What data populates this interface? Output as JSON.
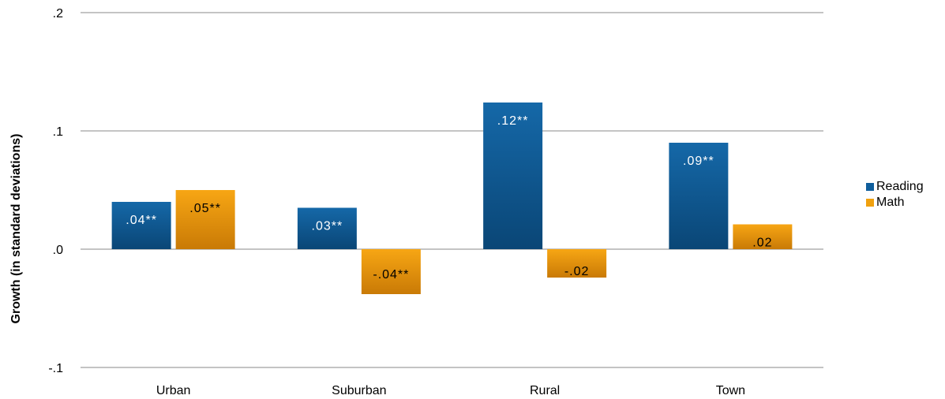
{
  "chart_data": {
    "type": "bar",
    "ylabel": "Growth (in standard deviations)",
    "xlabel": "",
    "categories": [
      "Urban",
      "Suburban",
      "Rural",
      "Town"
    ],
    "yticks": [
      {
        "value": -0.1,
        "label": "-.1"
      },
      {
        "value": 0.0,
        "label": ".0"
      },
      {
        "value": 0.1,
        "label": ".1"
      },
      {
        "value": 0.2,
        "label": ".2"
      }
    ],
    "ylim": [
      -0.1,
      0.2
    ],
    "grid": true,
    "legend_position": "right",
    "series": [
      {
        "name": "Reading",
        "color": "#0f5e9c",
        "values": [
          0.04,
          0.035,
          0.124,
          0.09
        ],
        "labels": [
          ".04**",
          ".03**",
          ".12**",
          ".09**"
        ]
      },
      {
        "name": "Math",
        "color": "#f0a10f",
        "values": [
          0.05,
          -0.038,
          -0.024,
          0.021
        ],
        "labels": [
          ".05**",
          "-.04**",
          "-.02",
          ".02"
        ]
      }
    ]
  }
}
